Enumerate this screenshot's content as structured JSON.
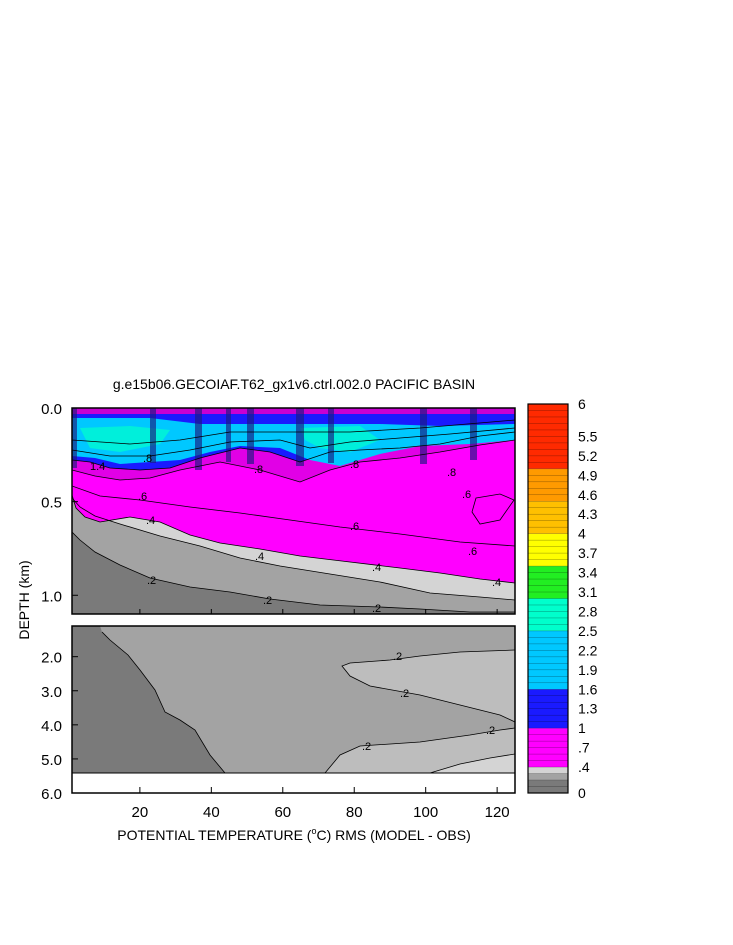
{
  "chart_data": {
    "type": "heatmap",
    "title": "g.e15b06.GECOIAF.T62_gx1v6.ctrl.002.0 PACIFIC BASIN",
    "xlabel_pre": "POTENTIAL TEMPERATURE (",
    "xlabel_sup": "o",
    "xlabel_post": "C) RMS (MODEL - OBS)",
    "ylabel": "DEPTH (km)",
    "x_ticks": [
      "20",
      "40",
      "60",
      "80",
      "100",
      "120"
    ],
    "x_tick_values": [
      20,
      40,
      60,
      80,
      100,
      120
    ],
    "xlim": [
      1,
      125
    ],
    "upper_panel": {
      "ylim": [
        0.0,
        1.1
      ],
      "y_ticks": [
        "0.0",
        "0.5",
        "1.0"
      ],
      "y_tick_values": [
        0.0,
        0.5,
        1.0
      ]
    },
    "lower_panel": {
      "ylim": [
        1.1,
        6.0
      ],
      "y_ticks": [
        "2.0",
        "3.0",
        "4.0",
        "5.0",
        "6.0"
      ],
      "y_tick_values": [
        2.0,
        3.0,
        4.0,
        5.0,
        6.0
      ]
    },
    "colorbar": {
      "min": 0,
      "max": 6,
      "labels": [
        "6",
        "5.5",
        "5.2",
        "4.9",
        "4.6",
        "4.3",
        "4",
        "3.7",
        "3.4",
        "3.1",
        "2.8",
        "2.5",
        "2.2",
        "1.9",
        "1.6",
        "1.3",
        "1",
        ".7",
        ".4",
        "0"
      ],
      "label_values": [
        6,
        5.5,
        5.2,
        4.9,
        4.6,
        4.3,
        4,
        3.7,
        3.4,
        3.1,
        2.8,
        2.5,
        2.2,
        1.9,
        1.6,
        1.3,
        1,
        0.7,
        0.4,
        0
      ]
    },
    "contour_labels": [
      ".2",
      ".4",
      ".6",
      ".8",
      "1.4"
    ],
    "colors": {
      "c_0_02": "#7a7a7a",
      "c_02_03": "#a3a3a3",
      "c_03_04": "#d4d4d4",
      "c_04_10": "#ff00ff",
      "c_10_16": "#1a1aff",
      "c_16_25": "#00c8ff",
      "c_25_30": "#00ffcc",
      "c_30_35": "#22ee22",
      "c_35_40": "#ffff00",
      "c_40_45": "#ffc000",
      "c_45_50": "#ff9a00",
      "c_50_60": "#ff2a00"
    }
  }
}
